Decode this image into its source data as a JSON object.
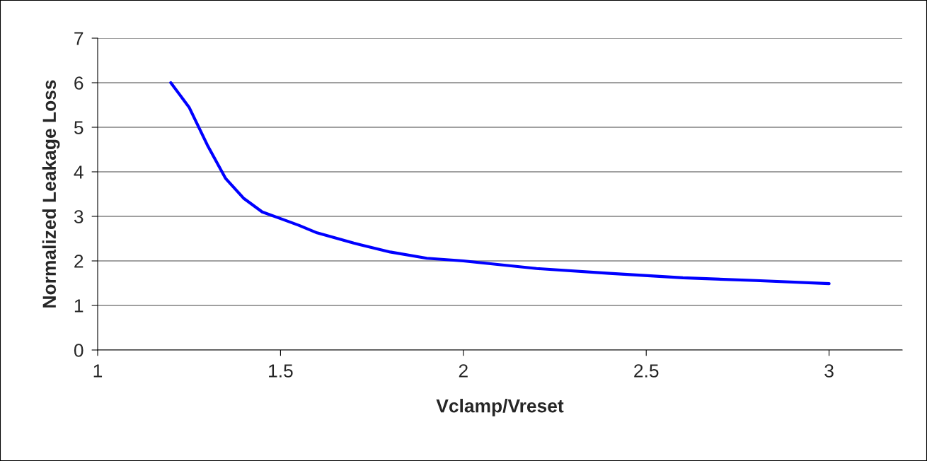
{
  "chart_data": {
    "type": "line",
    "xlabel": "Vclamp/Vreset",
    "ylabel": "Normalized Leakage Loss",
    "x": [
      1.2,
      1.25,
      1.3,
      1.35,
      1.4,
      1.45,
      1.5,
      1.55,
      1.6,
      1.7,
      1.8,
      1.9,
      2.0,
      2.2,
      2.4,
      2.6,
      2.8,
      3.0
    ],
    "series": [
      {
        "color": "#0000ff",
        "values": [
          6.0,
          5.45,
          4.6,
          3.85,
          3.4,
          3.1,
          2.95,
          2.8,
          2.63,
          2.4,
          2.2,
          2.06,
          2.0,
          1.83,
          1.72,
          1.62,
          1.56,
          1.49
        ]
      }
    ],
    "xlim": [
      1,
      3.2
    ],
    "xticks": [
      1,
      1.5,
      2,
      2.5,
      3
    ],
    "ylim": [
      0,
      7
    ],
    "yticks": [
      0,
      1,
      2,
      3,
      4,
      5,
      6,
      7
    ],
    "grid": "y",
    "legend": false,
    "marker": "none",
    "line_style": "solid"
  }
}
